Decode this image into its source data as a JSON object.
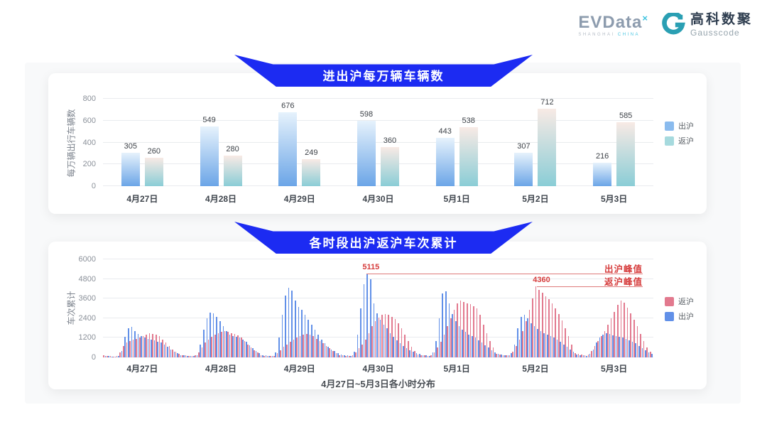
{
  "header": {
    "evdata": {
      "text": "EVData",
      "sup": "×",
      "sub1": "SHANGHAI",
      "sub2": "CHINA"
    },
    "gausscode": {
      "cn": "高科数聚",
      "en": "Gausscode"
    }
  },
  "colors": {
    "banner_blue": "#1c2bf2",
    "annotation_red": "#d63c3c",
    "grid": "#e9ebee",
    "gausscode_teal": "#2a9fb3"
  },
  "chart_data": [
    {
      "type": "bar",
      "title": "进出沪每万辆车辆数",
      "ylabel": "每万辆出行车辆数",
      "ylim": [
        0,
        800
      ],
      "yticks": [
        0,
        200,
        400,
        600,
        800
      ],
      "grid": true,
      "legend_position": "right",
      "categories": [
        "4月27日",
        "4月28日",
        "4月29日",
        "4月30日",
        "5月1日",
        "5月2日",
        "5月3日"
      ],
      "series": [
        {
          "name": "出沪",
          "values": [
            305,
            549,
            676,
            598,
            443,
            307,
            216
          ],
          "color_top": "#e6f2fc",
          "color_bottom": "#6ba5e7",
          "legend_color": "#8abbee"
        },
        {
          "name": "返沪",
          "values": [
            260,
            280,
            249,
            360,
            538,
            712,
            585
          ],
          "color_top": "#f8eae5",
          "color_bottom": "#8acdd6",
          "legend_color": "#a6dade"
        }
      ]
    },
    {
      "type": "bar",
      "title": "各时段出沪返沪车次累计",
      "xlabel": "4月27日~5月3日各小时分布",
      "ylabel": "车次累计",
      "ylim": [
        0,
        6000
      ],
      "yticks": [
        0,
        1200,
        2400,
        3600,
        4800,
        6000
      ],
      "grid": true,
      "legend_position": "right",
      "hours_per_day": 24,
      "day_labels": [
        "4月27日",
        "4月28日",
        "4月29日",
        "4月30日",
        "5月1日",
        "5月2日",
        "5月3日"
      ],
      "series": [
        {
          "name": "返沪",
          "color": "#e2798e",
          "legend_color": "#e2798e",
          "values_by_day": [
            [
              150,
              100,
              80,
              60,
              100,
              300,
              700,
              900,
              1000,
              1100,
              1150,
              1200,
              1300,
              1400,
              1500,
              1450,
              1400,
              1300,
              1100,
              900,
              700,
              500,
              350,
              200
            ],
            [
              150,
              120,
              90,
              80,
              120,
              300,
              600,
              900,
              1100,
              1250,
              1400,
              1500,
              1550,
              1600,
              1550,
              1500,
              1450,
              1350,
              1200,
              1000,
              800,
              600,
              450,
              300
            ],
            [
              120,
              100,
              80,
              70,
              100,
              250,
              450,
              650,
              800,
              950,
              1100,
              1200,
              1300,
              1400,
              1450,
              1400,
              1300,
              1150,
              1000,
              850,
              700,
              550,
              400,
              280
            ],
            [
              150,
              120,
              100,
              80,
              120,
              300,
              550,
              800,
              1100,
              1500,
              1900,
              2200,
              2450,
              2600,
              2650,
              2600,
              2500,
              2350,
              2100,
              1800,
              1400,
              1000,
              650,
              400
            ],
            [
              180,
              140,
              110,
              90,
              130,
              300,
              600,
              950,
              1400,
              1900,
              2400,
              2900,
              3300,
              3500,
              3400,
              3300,
              3250,
              3150,
              3000,
              2600,
              2000,
              1500,
              1000,
              600
            ],
            [
              220,
              170,
              130,
              110,
              150,
              350,
              700,
              1100,
              1600,
              2200,
              2900,
              3600,
              4360,
              4150,
              3950,
              3750,
              3550,
              3300,
              3000,
              2650,
              2250,
              1800,
              1300,
              800
            ],
            [
              250,
              200,
              160,
              130,
              180,
              400,
              700,
              1000,
              1300,
              1600,
              2000,
              2400,
              2800,
              3200,
              3480,
              3350,
              3050,
              2700,
              2300,
              1900,
              1450,
              1000,
              600,
              350
            ]
          ]
        },
        {
          "name": "出沪",
          "color": "#6190e8",
          "legend_color": "#6190e8",
          "values_by_day": [
            [
              100,
              80,
              60,
              50,
              80,
              400,
              1250,
              1800,
              1850,
              1600,
              1450,
              1300,
              1200,
              1150,
              1100,
              1050,
              950,
              900,
              800,
              650,
              500,
              350,
              250,
              150
            ],
            [
              120,
              100,
              80,
              70,
              150,
              800,
              1700,
              2400,
              2750,
              2700,
              2500,
              2200,
              1900,
              1600,
              1400,
              1300,
              1250,
              1200,
              1100,
              950,
              750,
              550,
              400,
              250
            ],
            [
              150,
              120,
              100,
              80,
              300,
              1200,
              2600,
              3800,
              4250,
              4100,
              3500,
              3100,
              2900,
              2600,
              2300,
              2000,
              1700,
              1400,
              1100,
              850,
              650,
              500,
              380,
              250
            ],
            [
              180,
              140,
              110,
              90,
              350,
              1400,
              3000,
              4500,
              5115,
              4800,
              3300,
              2700,
              2300,
              2000,
              1800,
              1500,
              1250,
              1050,
              850,
              700,
              550,
              450,
              350,
              250
            ],
            [
              200,
              150,
              120,
              100,
              300,
              1000,
              2400,
              3900,
              4050,
              3300,
              2650,
              2200,
              1900,
              1700,
              1550,
              1400,
              1300,
              1200,
              1050,
              900,
              750,
              600,
              450,
              300
            ],
            [
              200,
              160,
              130,
              110,
              250,
              800,
              1800,
              2500,
              2600,
              2400,
              2100,
              1900,
              1750,
              1600,
              1500,
              1400,
              1300,
              1200,
              1100,
              950,
              800,
              650,
              500,
              350
            ],
            [
              180,
              150,
              120,
              100,
              200,
              500,
              900,
              1200,
              1400,
              1500,
              1450,
              1350,
              1300,
              1250,
              1200,
              1150,
              1050,
              950,
              850,
              700,
              550,
              420,
              300,
              200
            ]
          ]
        }
      ],
      "annotations": [
        {
          "label": "5115",
          "line_label": "出沪峰值",
          "value": 5115,
          "day": 3,
          "hour": 8
        },
        {
          "label": "4360",
          "line_label": "返沪峰值",
          "value": 4360,
          "day": 5,
          "hour": 12
        }
      ]
    }
  ]
}
